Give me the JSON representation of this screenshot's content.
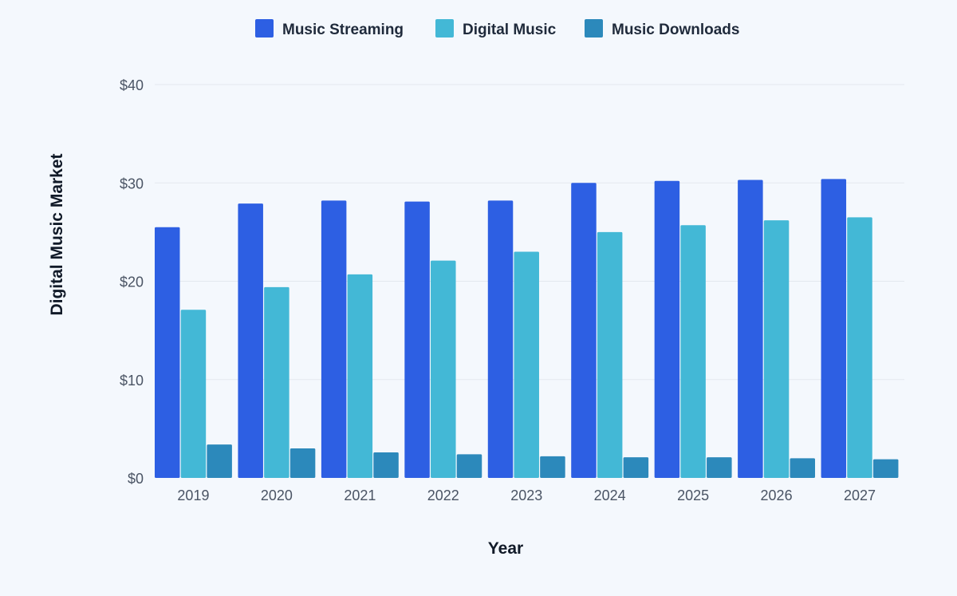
{
  "chart_data": {
    "type": "bar",
    "categories": [
      "2019",
      "2020",
      "2021",
      "2022",
      "2023",
      "2024",
      "2025",
      "2026",
      "2027"
    ],
    "series": [
      {
        "name": "Music Streaming",
        "color": "#2d5fe3",
        "values": [
          25.5,
          27.9,
          28.2,
          28.1,
          28.2,
          30.0,
          30.2,
          30.3,
          30.4
        ]
      },
      {
        "name": "Digital Music",
        "color": "#43b8d6",
        "values": [
          17.1,
          19.4,
          20.7,
          22.1,
          23.0,
          25.0,
          25.7,
          26.2,
          26.5
        ]
      },
      {
        "name": "Music Downloads",
        "color": "#2c89bb",
        "values": [
          3.4,
          3.0,
          2.6,
          2.4,
          2.2,
          2.1,
          2.1,
          2.0,
          1.9
        ]
      }
    ],
    "ylim": [
      0,
      40
    ],
    "yticks": [
      0,
      10,
      20,
      30,
      40
    ],
    "ytick_labels": [
      "$0",
      "$10",
      "$20",
      "$30",
      "$40"
    ],
    "xlabel": "Year",
    "ylabel": "Digital Music Market",
    "grid": true,
    "legend_position": "top-center"
  }
}
